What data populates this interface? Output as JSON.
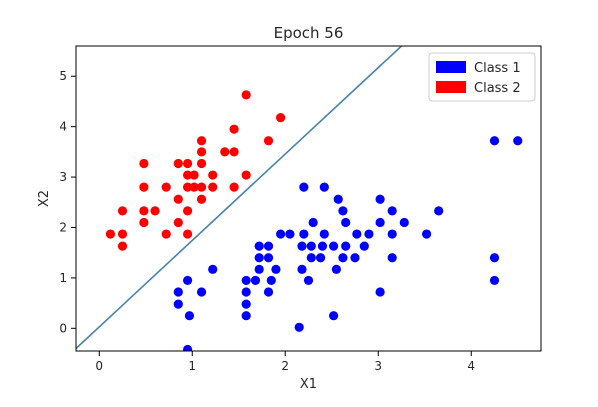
{
  "chart_data": {
    "type": "scatter",
    "title": "Epoch 56",
    "xlabel": "X1",
    "ylabel": "X2",
    "xlim": [
      -0.25,
      4.75
    ],
    "ylim": [
      -0.45,
      5.6
    ],
    "xticks": [
      0,
      1,
      2,
      3,
      4
    ],
    "yticks": [
      0,
      1,
      2,
      3,
      4,
      5
    ],
    "grid": false,
    "legend_position": "top-right",
    "series": [
      {
        "name": "Class 1",
        "color": "#0000ff",
        "points": [
          [
            4.25,
            3.72
          ],
          [
            4.5,
            3.72
          ],
          [
            4.25,
            1.4
          ],
          [
            4.25,
            0.95
          ],
          [
            3.65,
            2.33
          ],
          [
            3.52,
            1.87
          ],
          [
            3.28,
            2.1
          ],
          [
            3.15,
            2.33
          ],
          [
            3.15,
            1.87
          ],
          [
            3.15,
            1.4
          ],
          [
            3.02,
            2.56
          ],
          [
            3.02,
            2.1
          ],
          [
            3.02,
            0.72
          ],
          [
            2.9,
            1.87
          ],
          [
            2.85,
            1.63
          ],
          [
            2.77,
            1.87
          ],
          [
            2.75,
            1.4
          ],
          [
            2.65,
            2.1
          ],
          [
            2.65,
            1.63
          ],
          [
            2.62,
            2.33
          ],
          [
            2.62,
            1.4
          ],
          [
            2.57,
            2.56
          ],
          [
            2.55,
            1.17
          ],
          [
            2.52,
            1.63
          ],
          [
            2.52,
            0.25
          ],
          [
            2.42,
            2.8
          ],
          [
            2.42,
            1.87
          ],
          [
            2.4,
            1.63
          ],
          [
            2.38,
            1.4
          ],
          [
            2.3,
            2.1
          ],
          [
            2.28,
            1.63
          ],
          [
            2.28,
            1.4
          ],
          [
            2.25,
            0.95
          ],
          [
            2.2,
            2.8
          ],
          [
            2.2,
            1.87
          ],
          [
            2.18,
            1.63
          ],
          [
            2.18,
            1.17
          ],
          [
            2.15,
            0.02
          ],
          [
            2.05,
            1.87
          ],
          [
            1.95,
            1.87
          ],
          [
            1.9,
            1.17
          ],
          [
            1.85,
            0.95
          ],
          [
            1.82,
            1.63
          ],
          [
            1.82,
            1.4
          ],
          [
            1.82,
            0.72
          ],
          [
            1.72,
            1.63
          ],
          [
            1.72,
            1.4
          ],
          [
            1.72,
            1.17
          ],
          [
            1.68,
            0.95
          ],
          [
            1.58,
            0.95
          ],
          [
            1.58,
            0.72
          ],
          [
            1.58,
            0.48
          ],
          [
            1.58,
            0.25
          ],
          [
            1.22,
            1.17
          ],
          [
            1.1,
            0.72
          ],
          [
            0.95,
            0.95
          ],
          [
            0.95,
            -0.42
          ],
          [
            0.97,
            0.25
          ],
          [
            0.85,
            0.72
          ],
          [
            0.85,
            0.48
          ]
        ]
      },
      {
        "name": "Class 2",
        "color": "#ff0000",
        "points": [
          [
            1.58,
            4.63
          ],
          [
            1.95,
            4.18
          ],
          [
            1.45,
            3.95
          ],
          [
            1.82,
            3.72
          ],
          [
            1.1,
            3.72
          ],
          [
            1.1,
            3.5
          ],
          [
            1.35,
            3.5
          ],
          [
            1.45,
            3.5
          ],
          [
            0.48,
            3.27
          ],
          [
            0.85,
            3.27
          ],
          [
            0.95,
            3.27
          ],
          [
            1.1,
            3.27
          ],
          [
            0.95,
            3.04
          ],
          [
            1.02,
            3.04
          ],
          [
            1.22,
            3.04
          ],
          [
            1.58,
            3.04
          ],
          [
            0.48,
            2.8
          ],
          [
            0.72,
            2.8
          ],
          [
            0.95,
            2.8
          ],
          [
            1.02,
            2.8
          ],
          [
            1.1,
            2.8
          ],
          [
            1.22,
            2.8
          ],
          [
            1.45,
            2.8
          ],
          [
            0.85,
            2.56
          ],
          [
            1.1,
            2.56
          ],
          [
            0.25,
            2.33
          ],
          [
            0.48,
            2.33
          ],
          [
            0.6,
            2.33
          ],
          [
            0.95,
            2.33
          ],
          [
            0.48,
            2.1
          ],
          [
            0.85,
            2.1
          ],
          [
            0.12,
            1.87
          ],
          [
            0.25,
            1.87
          ],
          [
            0.72,
            1.87
          ],
          [
            0.95,
            1.87
          ],
          [
            0.25,
            1.63
          ]
        ]
      }
    ],
    "decision_boundary": {
      "color": "#4682b4",
      "points": [
        [
          -0.25,
          -0.4
        ],
        [
          3.25,
          5.6
        ]
      ]
    }
  }
}
